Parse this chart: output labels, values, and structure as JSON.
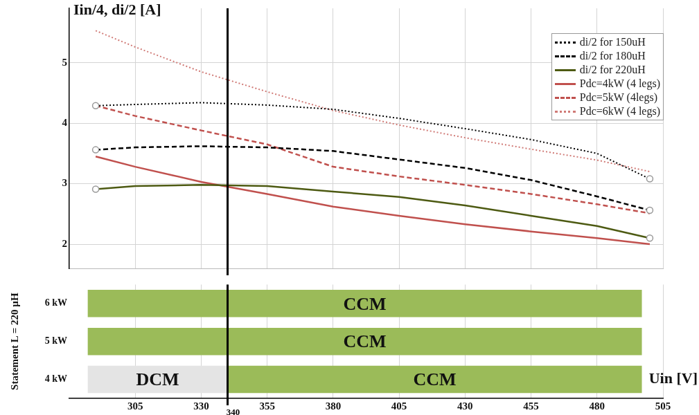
{
  "chart_data": [
    {
      "type": "line",
      "ylabel": "Iin/4, di/2 [A]",
      "x": [
        290,
        305,
        330,
        355,
        380,
        405,
        430,
        455,
        480,
        500
      ],
      "xlim": [
        280,
        505
      ],
      "xticks": [
        {
          "value": 305,
          "label": null
        },
        {
          "value": 330,
          "label": null
        },
        {
          "value": 355,
          "label": null
        },
        {
          "value": 380,
          "label": null
        },
        {
          "value": 405,
          "label": null
        },
        {
          "value": 430,
          "label": null
        },
        {
          "value": 455,
          "label": null
        },
        {
          "value": 480,
          "label": null
        },
        {
          "value": 505,
          "label": null
        }
      ],
      "ylim": [
        1.6,
        5.9
      ],
      "yticks": [
        2,
        3,
        4,
        5
      ],
      "tick_labels": "y",
      "grid": true,
      "legend": "top right",
      "series": [
        {
          "name": "di/2 for 150uH",
          "color": "#000000",
          "line_style": "dotted",
          "values": [
            4.29,
            4.31,
            4.34,
            4.3,
            4.23,
            4.08,
            3.91,
            3.73,
            3.5,
            3.08
          ]
        },
        {
          "name": "di/2 for 180uH",
          "color": "#000000",
          "line_style": "dashed",
          "values": [
            3.56,
            3.6,
            3.62,
            3.6,
            3.54,
            3.4,
            3.26,
            3.06,
            2.79,
            2.56
          ]
        },
        {
          "name": "di/2 for 220uH",
          "color": "#4d5a12",
          "line_style": "solid",
          "values": [
            2.91,
            2.96,
            2.98,
            2.96,
            2.87,
            2.78,
            2.64,
            2.47,
            2.3,
            2.1
          ]
        },
        {
          "name": "Pdc=4kW (4 legs)",
          "color": "#c0504d",
          "line_style": "solid",
          "values": [
            3.45,
            3.28,
            3.03,
            2.83,
            2.62,
            2.47,
            2.33,
            2.21,
            2.1,
            2.0
          ]
        },
        {
          "name": "Pdc=5kW (4legs)",
          "color": "#c0504d",
          "line_style": "dashed",
          "values": [
            4.29,
            4.12,
            3.88,
            3.65,
            3.28,
            3.12,
            2.98,
            2.83,
            2.66,
            2.51
          ]
        },
        {
          "name": "Pdc=6kW (4 legs)",
          "color": "#d07a76",
          "line_style": "dotted",
          "values": [
            5.53,
            5.26,
            4.85,
            4.52,
            4.21,
            3.97,
            3.76,
            3.57,
            3.39,
            3.2
          ]
        },
        {
          "type": "scatter",
          "color": "#999999",
          "marker": "circle",
          "values": [
            4.29,
            null,
            null,
            null,
            null,
            null,
            null,
            null,
            null,
            3.08
          ]
        },
        {
          "type": "scatter",
          "color": "#999999",
          "marker": "circle",
          "values": [
            3.56,
            null,
            null,
            null,
            null,
            null,
            null,
            null,
            null,
            2.56
          ]
        },
        {
          "type": "scatter",
          "color": "#999999",
          "marker": "circle",
          "values": [
            2.91,
            null,
            null,
            null,
            null,
            null,
            null,
            null,
            null,
            2.1
          ]
        }
      ],
      "ref_lines": [
        {
          "axis": "x",
          "value": 340,
          "color": "#000000"
        }
      ]
    },
    {
      "type": "bar",
      "orientation": "horizontal",
      "ylabel": "Statement L = 220 µH",
      "xlabel": "Uin [V]",
      "categories": [
        "6 kW",
        "5 kW",
        "4 kW"
      ],
      "xlim": [
        280,
        505
      ],
      "xticks": [
        305,
        330,
        355,
        380,
        405,
        430,
        455,
        480,
        505
      ],
      "grid": "x",
      "series": [
        {
          "name": "CCM",
          "color": "#9bbb59",
          "base": [
            287,
            287,
            340
          ],
          "values": [
            210,
            210,
            157
          ]
        },
        {
          "name": "DCM",
          "color": "#e4e4e4",
          "base": [
            null,
            null,
            287
          ],
          "values": [
            null,
            null,
            53
          ]
        }
      ],
      "ref_lines": [
        {
          "axis": "x",
          "value": 340,
          "label": "340",
          "color": "#000000"
        }
      ]
    }
  ]
}
